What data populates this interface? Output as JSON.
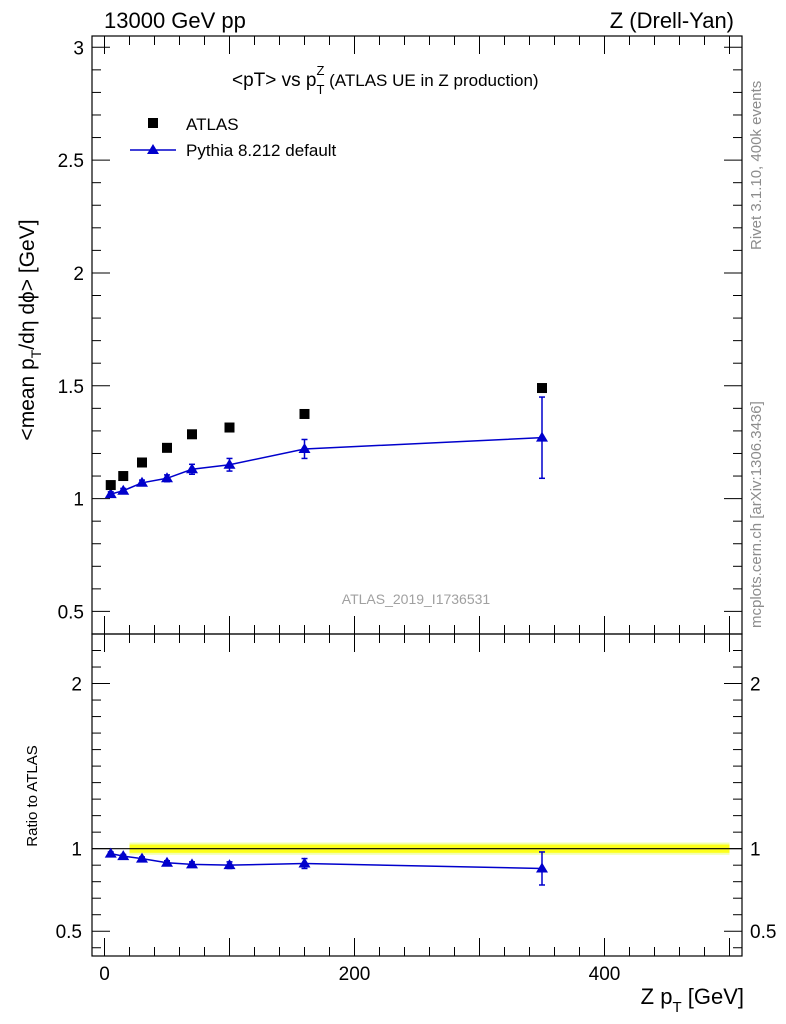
{
  "header": {
    "energy": "13000 GeV pp",
    "process": "Z (Drell-Yan)"
  },
  "side_labels": {
    "rivet": "Rivet 3.1.10,  400k events",
    "mcplots": "mcplots.cern.ch [arXiv:1306.3436]"
  },
  "chart_data": {
    "type": "scatter",
    "title": "<pT> vs p_T^Z (ATLAS UE in Z production)",
    "title_parts": {
      "main": "<pT> vs p",
      "sub": "T",
      "sup": "Z",
      "rest": " (ATLAS UE in Z production)"
    },
    "analysis_id": "ATLAS_2019_I1736531",
    "xlabel": "Z p_T [GeV]",
    "xlabel_parts": {
      "main": "Z p",
      "sub": "T",
      "rest": " [GeV]"
    },
    "ylabel": "<mean p_T/dη dϕ> [GeV]",
    "ylabel_parts": {
      "main": "<mean p",
      "sub": "T",
      "rest": "/dη dϕ> [GeV]"
    },
    "ratio_ylabel": "Ratio to ATLAS",
    "xlim": [
      -10,
      510
    ],
    "ylim": [
      0.4,
      3.05
    ],
    "ratio_ylim": [
      0.35,
      2.3
    ],
    "x_ticks": [
      0,
      200,
      400
    ],
    "y_ticks": [
      0.5,
      1,
      1.5,
      2,
      2.5,
      3
    ],
    "ratio_y_ticks": [
      0.5,
      1,
      2
    ],
    "legend": [
      {
        "name": "ATLAS",
        "marker": "square",
        "color": "#000000"
      },
      {
        "name": "Pythia 8.212 default",
        "marker": "triangle",
        "color": "#0000cc"
      }
    ],
    "series": [
      {
        "name": "ATLAS",
        "x": [
          5,
          15,
          30,
          50,
          70,
          100,
          160,
          350
        ],
        "y": [
          1.06,
          1.1,
          1.16,
          1.225,
          1.285,
          1.315,
          1.375,
          1.49
        ]
      },
      {
        "name": "Pythia 8.212 default",
        "x": [
          5,
          15,
          30,
          50,
          70,
          100,
          160,
          350
        ],
        "y": [
          1.02,
          1.035,
          1.07,
          1.09,
          1.13,
          1.15,
          1.22,
          1.27
        ],
        "yerr": [
          0.01,
          0.01,
          0.012,
          0.015,
          0.022,
          0.028,
          0.042,
          0.18
        ]
      }
    ],
    "ratio_series": {
      "name": "Pythia 8.212 default / ATLAS",
      "x": [
        5,
        15,
        30,
        50,
        70,
        100,
        160,
        350
      ],
      "y": [
        0.97,
        0.955,
        0.94,
        0.915,
        0.905,
        0.9,
        0.91,
        0.88
      ],
      "yerr": [
        0.01,
        0.01,
        0.01,
        0.012,
        0.015,
        0.02,
        0.03,
        0.1
      ]
    },
    "ratio_band": {
      "x_range": [
        20,
        500
      ],
      "center": 1.0,
      "half_width": 0.025,
      "color": "#ffff00"
    }
  }
}
